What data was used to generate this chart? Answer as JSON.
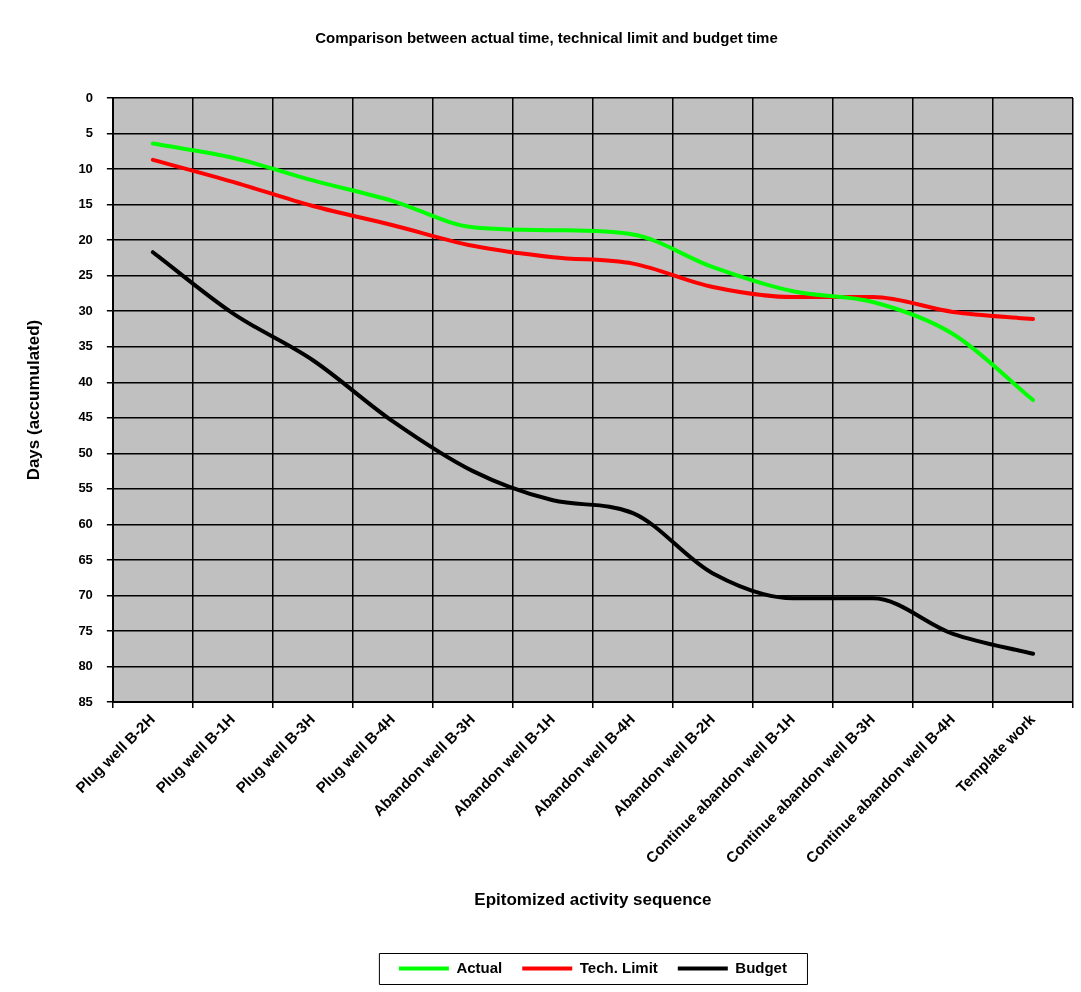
{
  "chart_data": {
    "type": "line",
    "title": "Comparison between actual time, technical limit and budget time",
    "xlabel": "Epitomized activity sequence",
    "ylabel": "Days (accumulated)",
    "categories": [
      "Plug well B-2H",
      "Plug well B-1H",
      "Plug well B-3H",
      "Plug well B-4H",
      "Abandon well B-3H",
      "Abandon well B-1H",
      "Abandon well B-4H",
      "Abandon well B-2H",
      "Continue abandon well B-1H",
      "Continue abandon well B-3H",
      "Continue abandon well B-4H",
      "Template work"
    ],
    "series": [
      {
        "name": "Actual",
        "color": "#00ff00",
        "values": [
          6.4,
          8.4,
          11.6,
          14.5,
          18.2,
          18.6,
          19.2,
          23.8,
          27.2,
          28.7,
          33.2,
          42.5
        ]
      },
      {
        "name": "Tech. Limit",
        "color": "#ff0000",
        "values": [
          8.7,
          11.8,
          15.2,
          17.9,
          20.8,
          22.4,
          23.3,
          26.6,
          28.0,
          28.0,
          30.1,
          31.1
        ]
      },
      {
        "name": "Budget",
        "color": "#000000",
        "values": [
          21.7,
          30.3,
          36.9,
          45.5,
          52.5,
          56.6,
          58.4,
          66.9,
          70.4,
          70.4,
          75.4,
          78.2
        ]
      }
    ],
    "ylim": [
      85,
      0
    ],
    "yticks": [
      0,
      5,
      10,
      15,
      20,
      25,
      30,
      35,
      40,
      45,
      50,
      55,
      60,
      65,
      70,
      75,
      80,
      85
    ],
    "grid": true,
    "legend": "bottom",
    "marker": "none",
    "line_style": "solid"
  }
}
